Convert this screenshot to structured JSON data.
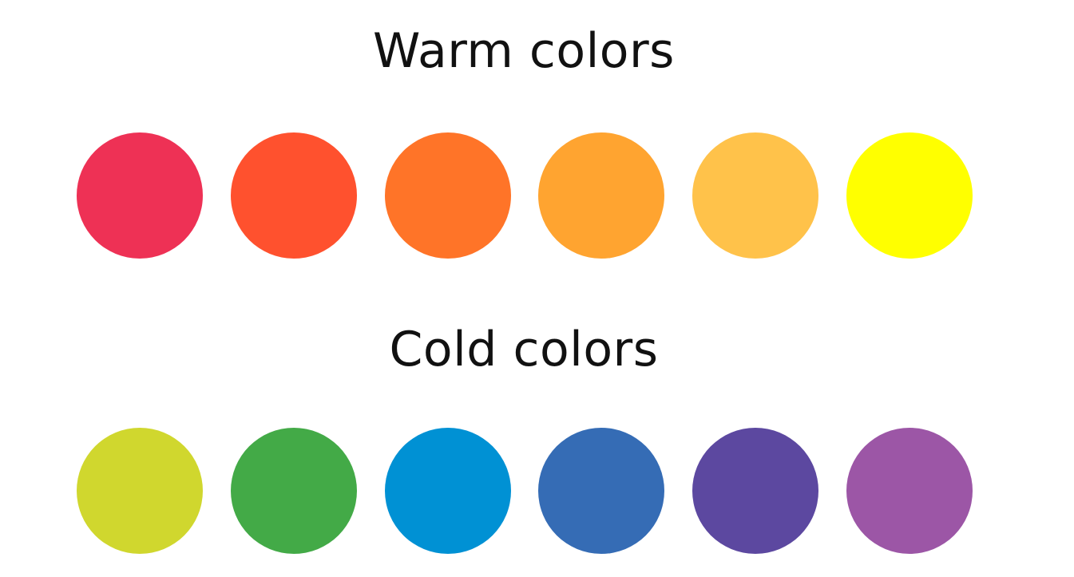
{
  "warm": {
    "title": "Warm colors",
    "swatches": [
      {
        "name": "crimson",
        "color": "#EE3155"
      },
      {
        "name": "red-orange",
        "color": "#FF512E"
      },
      {
        "name": "orange",
        "color": "#FF7428"
      },
      {
        "name": "amber",
        "color": "#FFA430"
      },
      {
        "name": "light-amber",
        "color": "#FFC24A"
      },
      {
        "name": "yellow",
        "color": "#FFFF00"
      }
    ]
  },
  "cold": {
    "title": "Cold colors",
    "swatches": [
      {
        "name": "yellow-green",
        "color": "#D0D72E"
      },
      {
        "name": "green",
        "color": "#43AA47"
      },
      {
        "name": "sky-blue",
        "color": "#0091D4"
      },
      {
        "name": "blue",
        "color": "#356CB5"
      },
      {
        "name": "indigo",
        "color": "#5C48A0"
      },
      {
        "name": "violet",
        "color": "#9C56A6"
      }
    ]
  }
}
